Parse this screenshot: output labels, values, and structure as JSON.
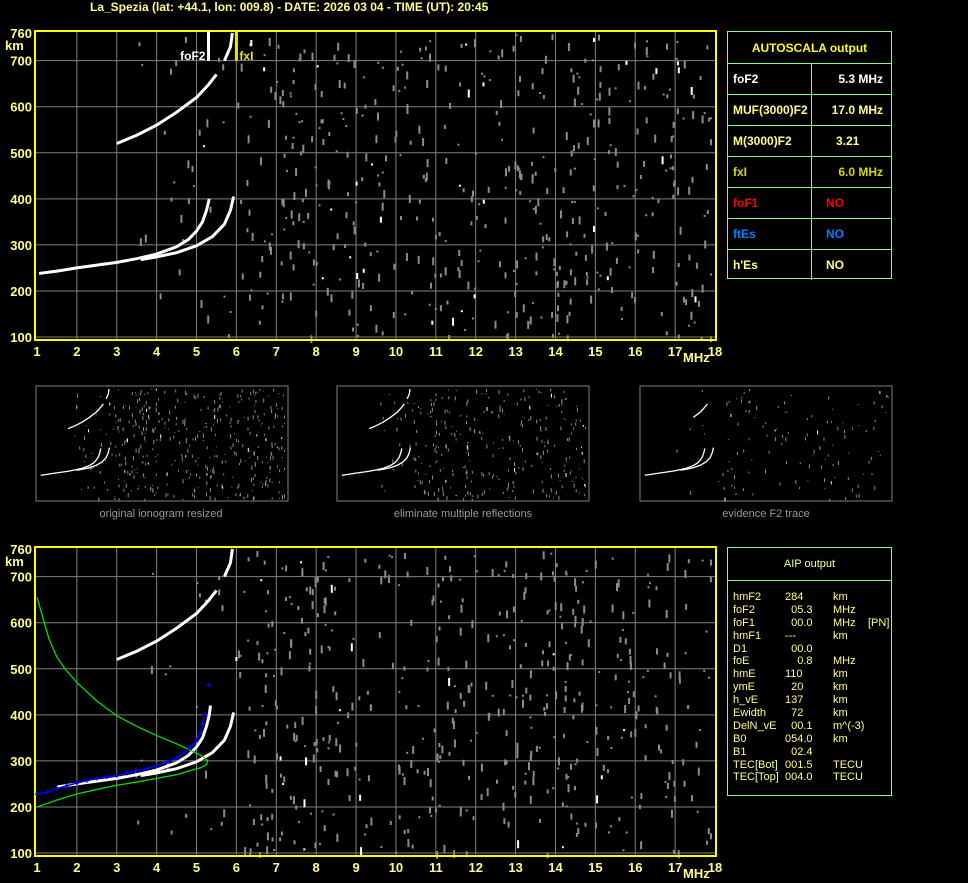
{
  "header": {
    "title": "La_Spezia (lat: +44.1, lon: 009.8) - DATE: 2026 03 04 - TIME (UT): 20:45"
  },
  "colors": {
    "frame": "#ffff00",
    "grid": "#808080",
    "tick": "#ffff80",
    "o_trace": "#ffffff",
    "noise": "#8c8c8c",
    "profile": "#00e000",
    "aip_trace": "#0000ff",
    "fxI": "#e8e800",
    "table_border": "#80ff80"
  },
  "autoscala": {
    "title": "AUTOSCALA output",
    "rows": [
      {
        "key": "foF2",
        "value": "5.3 MHz",
        "color": "#ffffff"
      },
      {
        "key": "MUF(3000)F2",
        "value": "17.0 MHz",
        "color": "#ffff80"
      },
      {
        "key": "M(3000)F2",
        "value": "3.21",
        "color": "#ffff80"
      },
      {
        "key": "fxI",
        "value": "6.0 MHz",
        "color": "#d8d800"
      },
      {
        "key": "foF1",
        "value": "NO",
        "color": "#ff0000"
      },
      {
        "key": "ftEs",
        "value": "NO",
        "color": "#0080ff"
      },
      {
        "key": "h'Es",
        "value": "NO",
        "color": "#ffff80"
      }
    ]
  },
  "aip": {
    "title": "AIP output",
    "rows": [
      {
        "name": "hmF2",
        "value": "284",
        "unit": "km",
        "flag": ""
      },
      {
        "name": "foF2",
        "value": "  05.3",
        "unit": "MHz",
        "flag": ""
      },
      {
        "name": "foF1",
        "value": "  00.0",
        "unit": "MHz",
        "flag": "[PN]"
      },
      {
        "name": "hmF1",
        "value": "---",
        "unit": "km",
        "flag": ""
      },
      {
        "name": "D1",
        "value": "  00.0",
        "unit": "",
        "flag": ""
      },
      {
        "name": "foE",
        "value": "    0.8",
        "unit": "MHz",
        "flag": ""
      },
      {
        "name": "hmE",
        "value": "110",
        "unit": "km",
        "flag": ""
      },
      {
        "name": "ymE",
        "value": "  20",
        "unit": "km",
        "flag": ""
      },
      {
        "name": "h_vE",
        "value": "137",
        "unit": "km",
        "flag": ""
      },
      {
        "name": "Ewidth",
        "value": "  72",
        "unit": "km",
        "flag": ""
      },
      {
        "name": "DelN_vE",
        "value": "  00.1",
        "unit": "m^(-3)",
        "flag": ""
      },
      {
        "name": "B0",
        "value": "054.0",
        "unit": "km",
        "flag": ""
      },
      {
        "name": "B1",
        "value": "  02.4",
        "unit": "",
        "flag": ""
      },
      {
        "name": "TEC[Bot]",
        "value": "001.5",
        "unit": "TECU",
        "flag": ""
      },
      {
        "name": "TEC[Top]",
        "value": "004.0",
        "unit": "TECU",
        "flag": ""
      }
    ]
  },
  "thumbnails": [
    {
      "caption": "original ionogram resized"
    },
    {
      "caption": "eliminate multiple reflections"
    },
    {
      "caption": "evidence F2 trace"
    }
  ],
  "chart_data": [
    {
      "type": "scatter",
      "xlim": [
        1,
        18
      ],
      "ylim": [
        100,
        760
      ],
      "xticks": [
        "1",
        "2",
        "3",
        "4",
        "5",
        "6",
        "7",
        "8",
        "9",
        "10",
        "11",
        "12",
        "13",
        "14",
        "15",
        "16",
        "17",
        "18"
      ],
      "yticks": [
        "100",
        "200",
        "300",
        "400",
        "500",
        "600",
        "700",
        "760"
      ],
      "xlabel": "MHz",
      "ylabel": "km",
      "grid": true,
      "markers": [
        {
          "label": "foF2",
          "freq": 5.3,
          "color": "#ffffff"
        },
        {
          "label": "fxI",
          "freq": 6.0,
          "color": "#e8e800"
        }
      ],
      "traces": [
        {
          "id": "o-trace",
          "color": "#ffffff",
          "points": [
            [
              1.05,
              238
            ],
            [
              1.5,
              243
            ],
            [
              2,
              250
            ],
            [
              2.5,
              256
            ],
            [
              3,
              262
            ],
            [
              3.5,
              270
            ],
            [
              4,
              280
            ],
            [
              4.5,
              296
            ],
            [
              4.8,
              312
            ],
            [
              5.0,
              330
            ],
            [
              5.15,
              350
            ],
            [
              5.25,
              375
            ],
            [
              5.32,
              400
            ]
          ]
        },
        {
          "id": "x-trace",
          "color": "#ffffff",
          "points": [
            [
              3.6,
              268
            ],
            [
              4,
              274
            ],
            [
              4.5,
              283
            ],
            [
              5,
              298
            ],
            [
              5.4,
              318
            ],
            [
              5.7,
              345
            ],
            [
              5.85,
              375
            ],
            [
              5.93,
              405
            ]
          ]
        },
        {
          "id": "second-hop-o",
          "color": "#ffffff",
          "points": [
            [
              3,
              520
            ],
            [
              3.5,
              538
            ],
            [
              4,
              560
            ],
            [
              4.5,
              588
            ],
            [
              5,
              620
            ],
            [
              5.3,
              648
            ],
            [
              5.5,
              670
            ]
          ]
        },
        {
          "id": "second-hop-x",
          "color": "#ffffff",
          "points": [
            [
              5.7,
              700
            ],
            [
              5.85,
              730
            ],
            [
              5.9,
              760
            ]
          ]
        }
      ]
    },
    {
      "type": "scatter",
      "xlim": [
        1,
        18
      ],
      "ylim": [
        100,
        760
      ],
      "xticks": [
        "1",
        "2",
        "3",
        "4",
        "5",
        "6",
        "7",
        "8",
        "9",
        "10",
        "11",
        "12",
        "13",
        "14",
        "15",
        "16",
        "17",
        "18"
      ],
      "yticks": [
        "100",
        "200",
        "300",
        "400",
        "500",
        "600",
        "700",
        "760"
      ],
      "xlabel": "MHz",
      "ylabel": "km",
      "grid": true,
      "traces": [
        {
          "id": "o-trace",
          "color": "#ffffff",
          "points": [
            [
              1.5,
              243
            ],
            [
              2,
              250
            ],
            [
              2.5,
              256
            ],
            [
              3,
              262
            ],
            [
              3.5,
              270
            ],
            [
              4,
              280
            ],
            [
              4.5,
              296
            ],
            [
              4.8,
              312
            ],
            [
              5.0,
              330
            ],
            [
              5.15,
              350
            ],
            [
              5.25,
              375
            ],
            [
              5.32,
              400
            ],
            [
              5.35,
              420
            ]
          ]
        },
        {
          "id": "x-trace",
          "color": "#ffffff",
          "points": [
            [
              3.6,
              268
            ],
            [
              4,
              274
            ],
            [
              4.5,
              283
            ],
            [
              5,
              298
            ],
            [
              5.4,
              318
            ],
            [
              5.7,
              345
            ],
            [
              5.85,
              375
            ],
            [
              5.93,
              405
            ]
          ]
        },
        {
          "id": "second-hop-o",
          "color": "#ffffff",
          "points": [
            [
              3,
              520
            ],
            [
              3.5,
              538
            ],
            [
              4,
              560
            ],
            [
              4.5,
              588
            ],
            [
              5,
              620
            ],
            [
              5.3,
              648
            ],
            [
              5.5,
              670
            ]
          ]
        },
        {
          "id": "second-hop-x",
          "color": "#ffffff",
          "points": [
            [
              5.7,
              700
            ],
            [
              5.85,
              730
            ],
            [
              5.9,
              760
            ]
          ]
        }
      ],
      "profile": {
        "color": "#00e000",
        "points": [
          [
            1,
            200
          ],
          [
            1.5,
            215
          ],
          [
            2,
            228
          ],
          [
            2.5,
            238
          ],
          [
            3,
            247
          ],
          [
            3.5,
            254
          ],
          [
            4,
            262
          ],
          [
            4.5,
            270
          ],
          [
            4.8,
            278
          ],
          [
            5.1,
            285
          ],
          [
            5.25,
            292
          ],
          [
            5.28,
            300
          ],
          [
            5.15,
            310
          ],
          [
            4.8,
            325
          ],
          [
            4.5,
            337
          ],
          [
            4,
            355
          ],
          [
            3.5,
            375
          ],
          [
            3,
            398
          ],
          [
            2.5,
            430
          ],
          [
            2,
            470
          ],
          [
            1.7,
            500
          ],
          [
            1.5,
            525
          ],
          [
            1.3,
            565
          ],
          [
            1.15,
            610
          ],
          [
            1,
            655
          ]
        ]
      },
      "aip_trace": {
        "color": "#0000ff",
        "points": [
          [
            1,
            228
          ],
          [
            1.25,
            232
          ],
          [
            1.5,
            240
          ],
          [
            1.75,
            246
          ],
          [
            2,
            252
          ],
          [
            2.25,
            257
          ],
          [
            2.5,
            262
          ],
          [
            2.75,
            265
          ],
          [
            3,
            268
          ],
          [
            3.25,
            273
          ],
          [
            3.5,
            278
          ],
          [
            3.75,
            283
          ],
          [
            4,
            290
          ],
          [
            4.25,
            297
          ],
          [
            4.5,
            306
          ],
          [
            4.7,
            318
          ],
          [
            4.85,
            330
          ],
          [
            5.0,
            345
          ],
          [
            5.1,
            362
          ],
          [
            5.15,
            380
          ],
          [
            5.2,
            400
          ],
          [
            5.3,
            465
          ]
        ]
      }
    }
  ]
}
